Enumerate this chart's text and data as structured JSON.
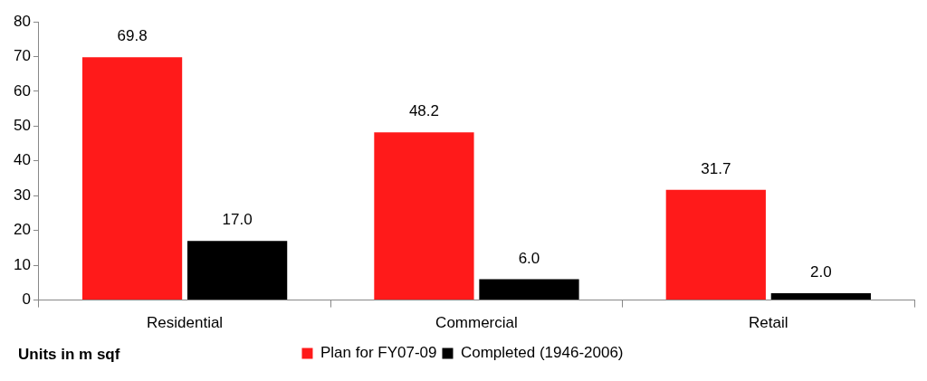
{
  "chart_data": {
    "type": "bar",
    "categories": [
      "Residential",
      "Commercial",
      "Retail"
    ],
    "series": [
      {
        "name": "Plan for FY07-09",
        "color": "#ff1a1a",
        "values": [
          69.8,
          48.2,
          31.7
        ],
        "value_labels": [
          "69.8",
          "48.2",
          "31.7"
        ]
      },
      {
        "name": "Completed (1946-2006)",
        "color": "#000000",
        "values": [
          17.0,
          6.0,
          2.0
        ],
        "value_labels": [
          "17.0",
          "6.0",
          "2.0"
        ]
      }
    ],
    "ylim": [
      0,
      80
    ],
    "yticks": [
      0,
      10,
      20,
      30,
      40,
      50,
      60,
      70,
      80
    ],
    "grid": false,
    "legend": "bottom",
    "annotations": [
      "Units in m sqf"
    ]
  }
}
